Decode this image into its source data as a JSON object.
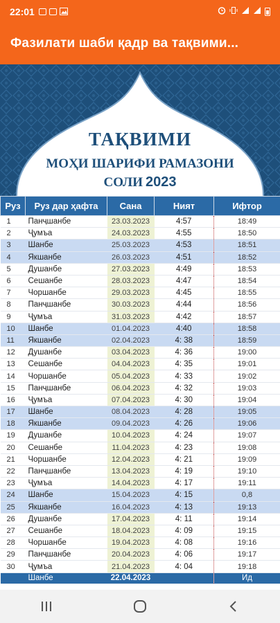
{
  "status_bar": {
    "time": "22:01",
    "icons": [
      "notification-square-icon",
      "image-icon",
      "alarm-icon",
      "vibrate-icon",
      "signal-icon",
      "signal-icon",
      "battery-icon"
    ]
  },
  "app_bar": {
    "title": "Фазилати шаби қадр ва тақвими..."
  },
  "header": {
    "title": "ТАҚВИМИ",
    "subtitle": "МОҲИ ШАРИФИ РАМАЗОНИ",
    "year_label": "СОЛИ",
    "year": "2023",
    "colors": {
      "ornament": "#1e4f7a",
      "accent": "#2b6aa6"
    }
  },
  "table": {
    "columns": [
      "Руз",
      "Руз дар ҳафта",
      "Сана",
      "Ният",
      "Ифтор"
    ],
    "rows": [
      {
        "day": "1",
        "weekday": "Панҷшанбе",
        "date": "23.03.2023",
        "niyat": "4:57",
        "iftor": "18:49",
        "hl": false
      },
      {
        "day": "2",
        "weekday": "Ҷумъа",
        "date": "24.03.2023",
        "niyat": "4:55",
        "iftor": "18:50",
        "hl": false
      },
      {
        "day": "3",
        "weekday": "Шанбе",
        "date": "25.03.2023",
        "niyat": "4:53",
        "iftor": "18:51",
        "hl": true
      },
      {
        "day": "4",
        "weekday": "Якшанбе",
        "date": "26.03.2023",
        "niyat": "4:51",
        "iftor": "18:52",
        "hl": true
      },
      {
        "day": "5",
        "weekday": "Душанбе",
        "date": "27.03.2023",
        "niyat": "4:49",
        "iftor": "18:53",
        "hl": false
      },
      {
        "day": "6",
        "weekday": "Сешанбе",
        "date": "28.03.2023",
        "niyat": "4:47",
        "iftor": "18:54",
        "hl": false
      },
      {
        "day": "7",
        "weekday": "Чоршанбе",
        "date": "29.03.2023",
        "niyat": "4:45",
        "iftor": "18:55",
        "hl": false
      },
      {
        "day": "8",
        "weekday": "Панҷшанбе",
        "date": "30.03.2023",
        "niyat": "4:44",
        "iftor": "18:56",
        "hl": false
      },
      {
        "day": "9",
        "weekday": "Ҷумъа",
        "date": "31.03.2023",
        "niyat": "4:42",
        "iftor": "18:57",
        "hl": false
      },
      {
        "day": "10",
        "weekday": "Шанбе",
        "date": "01.04.2023",
        "niyat": "4:40",
        "iftor": "18:58",
        "hl": true
      },
      {
        "day": "11",
        "weekday": "Якшанбе",
        "date": "02.04.2023",
        "niyat": "4: 38",
        "iftor": "18:59",
        "hl": true
      },
      {
        "day": "12",
        "weekday": "Душанбе",
        "date": "03.04.2023",
        "niyat": "4: 36",
        "iftor": "19:00",
        "hl": false
      },
      {
        "day": "13",
        "weekday": "Сешанбе",
        "date": "04.04.2023",
        "niyat": "4: 35",
        "iftor": "19:01",
        "hl": false
      },
      {
        "day": "14",
        "weekday": "Чоршанбе",
        "date": "05.04.2023",
        "niyat": "4: 33",
        "iftor": "19:02",
        "hl": false
      },
      {
        "day": "15",
        "weekday": "Панҷшанбе",
        "date": "06.04.2023",
        "niyat": "4: 32",
        "iftor": "19:03",
        "hl": false
      },
      {
        "day": "16",
        "weekday": "Ҷумъа",
        "date": "07.04.2023",
        "niyat": "4: 30",
        "iftor": "19:04",
        "hl": false
      },
      {
        "day": "17",
        "weekday": "Шанбе",
        "date": "08.04.2023",
        "niyat": "4: 28",
        "iftor": "19:05",
        "hl": true
      },
      {
        "day": "18",
        "weekday": "Якшанбе",
        "date": "09.04.2023",
        "niyat": "4: 26",
        "iftor": "19:06",
        "hl": true
      },
      {
        "day": "19",
        "weekday": "Душанбе",
        "date": "10.04.2023",
        "niyat": "4: 24",
        "iftor": "19:07",
        "hl": false
      },
      {
        "day": "20",
        "weekday": "Сешанбе",
        "date": "11.04.2023",
        "niyat": "4: 23",
        "iftor": "19:08",
        "hl": false
      },
      {
        "day": "21",
        "weekday": "Чоршанбе",
        "date": "12.04.2023",
        "niyat": "4: 21",
        "iftor": "19:09",
        "hl": false
      },
      {
        "day": "22",
        "weekday": "Панҷшанбе",
        "date": "13.04.2023",
        "niyat": "4: 19",
        "iftor": "19:10",
        "hl": false
      },
      {
        "day": "23",
        "weekday": "Ҷумъа",
        "date": "14.04.2023",
        "niyat": "4: 17",
        "iftor": "19:11",
        "hl": false
      },
      {
        "day": "24",
        "weekday": "Шанбе",
        "date": "15.04.2023",
        "niyat": "4: 15",
        "iftor": "0,8",
        "hl": true
      },
      {
        "day": "25",
        "weekday": "Якшанбе",
        "date": "16.04.2023",
        "niyat": "4: 13",
        "iftor": "19:13",
        "hl": true
      },
      {
        "day": "26",
        "weekday": "Душанбе",
        "date": "17.04.2023",
        "niyat": "4: 11",
        "iftor": "19:14",
        "hl": false
      },
      {
        "day": "27",
        "weekday": "Сешанбе",
        "date": "18.04.2023",
        "niyat": "4: 09",
        "iftor": "19:15",
        "hl": false
      },
      {
        "day": "28",
        "weekday": "Чоршанбе",
        "date": "19.04.2023",
        "niyat": "4: 08",
        "iftor": "19:16",
        "hl": false
      },
      {
        "day": "29",
        "weekday": "Панҷшанбе",
        "date": "20.04.2023",
        "niyat": "4: 06",
        "iftor": "19:17",
        "hl": false
      },
      {
        "day": "30",
        "weekday": "Ҷумъа",
        "date": "21.04.2023",
        "niyat": "4: 04",
        "iftor": "19:18",
        "hl": false
      }
    ],
    "footer_row": {
      "weekday": "Шанбе",
      "date": "22.04.2023",
      "niyat": "",
      "iftor": "Ид"
    }
  },
  "nav_bar": {
    "buttons": [
      "recent-apps-icon",
      "home-icon",
      "back-icon"
    ]
  }
}
